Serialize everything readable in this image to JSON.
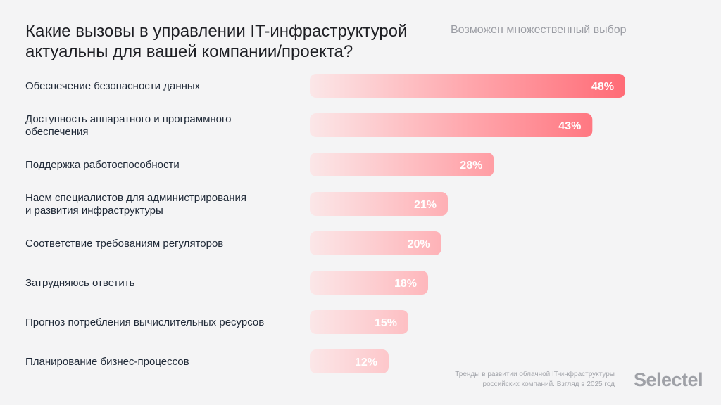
{
  "header": {
    "title": "Какие вызовы в управлении IT-инфраструктурой актуальны для вашей компании/проекта?",
    "subtitle": "Возможен множественный выбор"
  },
  "footer": {
    "source_line1": "Тренды в развитии облачной IT-инфраструктуры",
    "source_line2": "российских компаний. Взгляд в 2025 год",
    "brand": "Selectel"
  },
  "colors": {
    "bar_start": "#fbe7e8",
    "bar_end": "#ff6b76",
    "value_label": "#ffffff",
    "category_label": "#1f2937"
  },
  "chart_data": {
    "type": "bar",
    "orientation": "horizontal",
    "title": "Какие вызовы в управлении IT-инфраструктурой актуальны для вашей компании/проекта?",
    "subtitle": "Возможен множественный выбор",
    "xlabel": "",
    "ylabel": "",
    "grid": false,
    "legend": "none",
    "unit": "%",
    "xlim": [
      0,
      48
    ],
    "categories": [
      [
        "Обеспечение безопасности данных"
      ],
      [
        "Доступность аппаратного и программного",
        "обеспечения"
      ],
      [
        "Поддержка работоспособности"
      ],
      [
        "Наем специалистов для администрирования",
        "и развития инфраструктуры"
      ],
      [
        "Соответствие требованиям регуляторов"
      ],
      [
        "Затрудняюсь ответить"
      ],
      [
        "Прогноз потребления вычислительных ресурсов"
      ],
      [
        "Планирование бизнес-процессов"
      ]
    ],
    "values": [
      48,
      43,
      28,
      21,
      20,
      18,
      15,
      12
    ],
    "labels": [
      "48%",
      "43%",
      "28%",
      "21%",
      "20%",
      "18%",
      "15%",
      "12%"
    ]
  }
}
